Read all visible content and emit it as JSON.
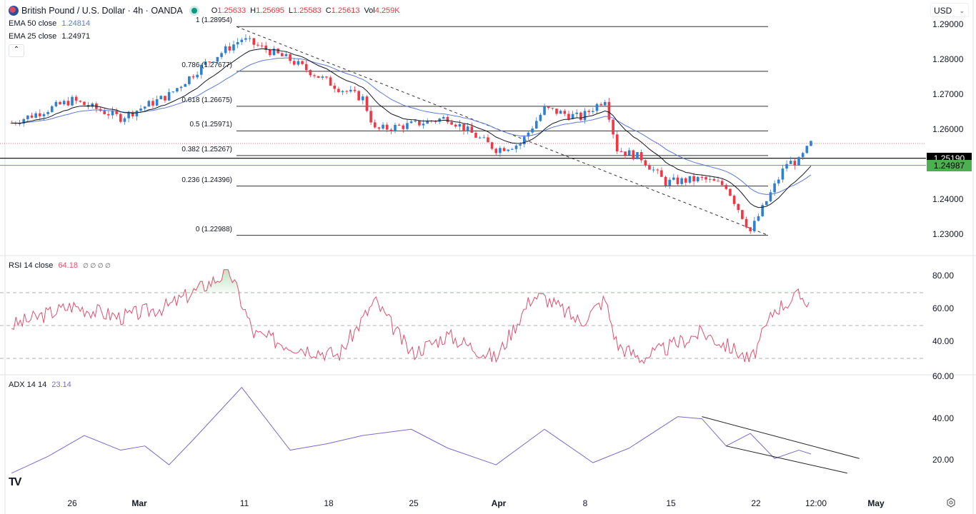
{
  "header": {
    "symbol_title": "British Pound / U.S. Dollar · 4h · OANDA",
    "ohlc": [
      {
        "key": "O",
        "value": "1.25633"
      },
      {
        "key": "H",
        "value": "1.25695"
      },
      {
        "key": "L",
        "value": "1.25583"
      },
      {
        "key": "C",
        "value": "1.25613"
      },
      {
        "key": "Vol",
        "value": "4.259K"
      }
    ],
    "currency": "USD"
  },
  "indicators": {
    "ema50": {
      "label": "EMA 50 close",
      "value": "1.24814",
      "color": "#5b7bd5"
    },
    "ema25": {
      "label": "EMA 25 close",
      "value": "1.24971",
      "color": "#131722"
    },
    "rsi": {
      "label": "RSI 14 close",
      "value": "64.18",
      "extra": "∅ ∅ ∅ ∅",
      "color": "#e0506e"
    },
    "adx": {
      "label": "ADX 14 14",
      "value": "23.14",
      "color": "#7e68c9"
    }
  },
  "price_axis": {
    "ticks": [
      "1.29000",
      "1.28000",
      "1.27000",
      "1.26000",
      "1.24000",
      "1.23000"
    ],
    "tags": [
      {
        "value": "1.25190",
        "bg": "#000000",
        "fg": "#ffffff"
      },
      {
        "value": "1.24987",
        "bg": "#4caf50",
        "fg": "#000000"
      }
    ]
  },
  "rsi_axis": {
    "ticks": [
      "80.00",
      "60.00",
      "40.00"
    ]
  },
  "adx_axis": {
    "ticks": [
      "60.00",
      "40.00",
      "20.00"
    ]
  },
  "time_axis": {
    "labels": [
      {
        "text": "26",
        "bold": false
      },
      {
        "text": "Mar",
        "bold": true
      },
      {
        "text": "11",
        "bold": false
      },
      {
        "text": "18",
        "bold": false
      },
      {
        "text": "25",
        "bold": false
      },
      {
        "text": "Apr",
        "bold": true
      },
      {
        "text": "8",
        "bold": false
      },
      {
        "text": "15",
        "bold": false
      },
      {
        "text": "22",
        "bold": false
      },
      {
        "text": "12:00",
        "bold": false
      },
      {
        "text": "May",
        "bold": true
      }
    ]
  },
  "fibonacci": [
    {
      "label": "1 (1.28954)",
      "level": 1,
      "price": 1.28954
    },
    {
      "label": "0.786 (1.27677)",
      "level": 0.786,
      "price": 1.27677
    },
    {
      "label": "0.618 (1.26675)",
      "level": 0.618,
      "price": 1.26675
    },
    {
      "label": "0.5 (1.25971)",
      "level": 0.5,
      "price": 1.25971
    },
    {
      "label": "0.382 (1.25267)",
      "level": 0.382,
      "price": 1.25267
    },
    {
      "label": "0.236 (1.24396)",
      "level": 0.236,
      "price": 1.24396
    },
    {
      "label": "0 (1.22988)",
      "level": 0,
      "price": 1.22988
    }
  ],
  "branding": {
    "logo": "TV"
  },
  "chart_data": [
    {
      "type": "candlestick",
      "title": "British Pound / U.S. Dollar · 4h · OANDA",
      "xlabel": "",
      "ylabel": "USD",
      "ylim": [
        1.226,
        1.2925
      ],
      "x_ticks": [
        "26",
        "Mar",
        "11",
        "18",
        "25",
        "Apr",
        "8",
        "15",
        "22",
        "12:00",
        "May"
      ],
      "y_ticks": [
        1.29,
        1.28,
        1.27,
        1.26,
        1.24,
        1.23
      ],
      "last_ohlc": {
        "open": 1.25633,
        "high": 1.25695,
        "low": 1.25583,
        "close": 1.25613,
        "volume": "4.259K"
      },
      "horizontal_lines": [
        {
          "price": 1.2519,
          "color": "#000000",
          "label": "1.25190"
        },
        {
          "price": 1.24987,
          "color": "#4caf50",
          "label": "1.24987"
        }
      ],
      "trendline": {
        "from": {
          "date": "Mar 11",
          "price": 1.28954
        },
        "to": {
          "date": "Apr 22",
          "price": 1.22988
        },
        "style": "dashed"
      },
      "approx_close_path": {
        "dates": [
          "Feb 21",
          "Feb 26",
          "Mar 1",
          "Mar 5",
          "Mar 8",
          "Mar 11",
          "Mar 15",
          "Mar 19",
          "Mar 21",
          "Mar 22",
          "Mar 25",
          "Mar 28",
          "Apr 1",
          "Apr 3",
          "Apr 5",
          "Apr 8",
          "Apr 10",
          "Apr 11",
          "Apr 13",
          "Apr 15",
          "Apr 18",
          "Apr 20",
          "Apr 22",
          "Apr 24",
          "Apr 25",
          "Apr 26",
          "Apr 27"
        ],
        "closes": [
          1.262,
          1.2685,
          1.2635,
          1.27,
          1.279,
          1.286,
          1.28,
          1.272,
          1.269,
          1.26,
          1.2615,
          1.2635,
          1.2545,
          1.256,
          1.266,
          1.2635,
          1.269,
          1.2545,
          1.252,
          1.245,
          1.246,
          1.244,
          1.231,
          1.244,
          1.2505,
          1.251,
          1.2561
        ]
      },
      "series": [
        {
          "name": "EMA 50 close",
          "last": 1.24814,
          "color": "#5b7bd5"
        },
        {
          "name": "EMA 25 close",
          "last": 1.24971,
          "color": "#131722"
        }
      ]
    },
    {
      "type": "line",
      "title": "RSI 14 close",
      "ylim": [
        25,
        88
      ],
      "y_ticks": [
        80,
        60,
        40
      ],
      "bands": [
        70,
        50,
        30
      ],
      "last": 64.18,
      "approx_path": {
        "dates": [
          "Feb 21",
          "Feb 26",
          "Mar 1",
          "Mar 5",
          "Mar 10",
          "Mar 12",
          "Mar 15",
          "Mar 19",
          "Mar 22",
          "Mar 25",
          "Mar 28",
          "Apr 1",
          "Apr 4",
          "Apr 5",
          "Apr 8",
          "Apr 10",
          "Apr 11",
          "Apr 13",
          "Apr 15",
          "Apr 18",
          "Apr 21",
          "Apr 22",
          "Apr 24",
          "Apr 26",
          "Apr 27"
        ],
        "values": [
          50,
          62,
          55,
          62,
          83,
          45,
          38,
          32,
          65,
          33,
          44,
          30,
          68,
          67,
          52,
          66,
          38,
          30,
          36,
          46,
          34,
          28,
          60,
          68,
          64.18
        ]
      }
    },
    {
      "type": "line",
      "title": "ADX 14 14",
      "ylim": [
        8,
        60
      ],
      "y_ticks": [
        60,
        40,
        20
      ],
      "last": 23.14,
      "approx_path": {
        "dates": [
          "Feb 21",
          "Feb 24",
          "Feb 27",
          "Mar 1",
          "Mar 3",
          "Mar 5",
          "Mar 7",
          "Mar 11",
          "Mar 15",
          "Mar 18",
          "Mar 21",
          "Mar 25",
          "Mar 28",
          "Apr 1",
          "Apr 5",
          "Apr 9",
          "Apr 12",
          "Apr 16",
          "Apr 18",
          "Apr 20",
          "Apr 22",
          "Apr 24",
          "Apr 26",
          "Apr 27"
        ],
        "values": [
          14,
          22,
          32,
          25,
          27,
          18,
          30,
          55,
          25,
          28,
          32,
          35,
          26,
          18,
          35,
          19,
          26,
          41,
          40,
          27,
          33,
          21,
          25,
          23.14
        ]
      },
      "trendlines": [
        {
          "from": {
            "date": "Apr 18",
            "value": 41
          },
          "to": {
            "date": "May 1",
            "value": 21
          }
        },
        {
          "from": {
            "date": "Apr 20",
            "value": 27
          },
          "to": {
            "date": "Apr 30",
            "value": 14
          }
        }
      ]
    }
  ]
}
